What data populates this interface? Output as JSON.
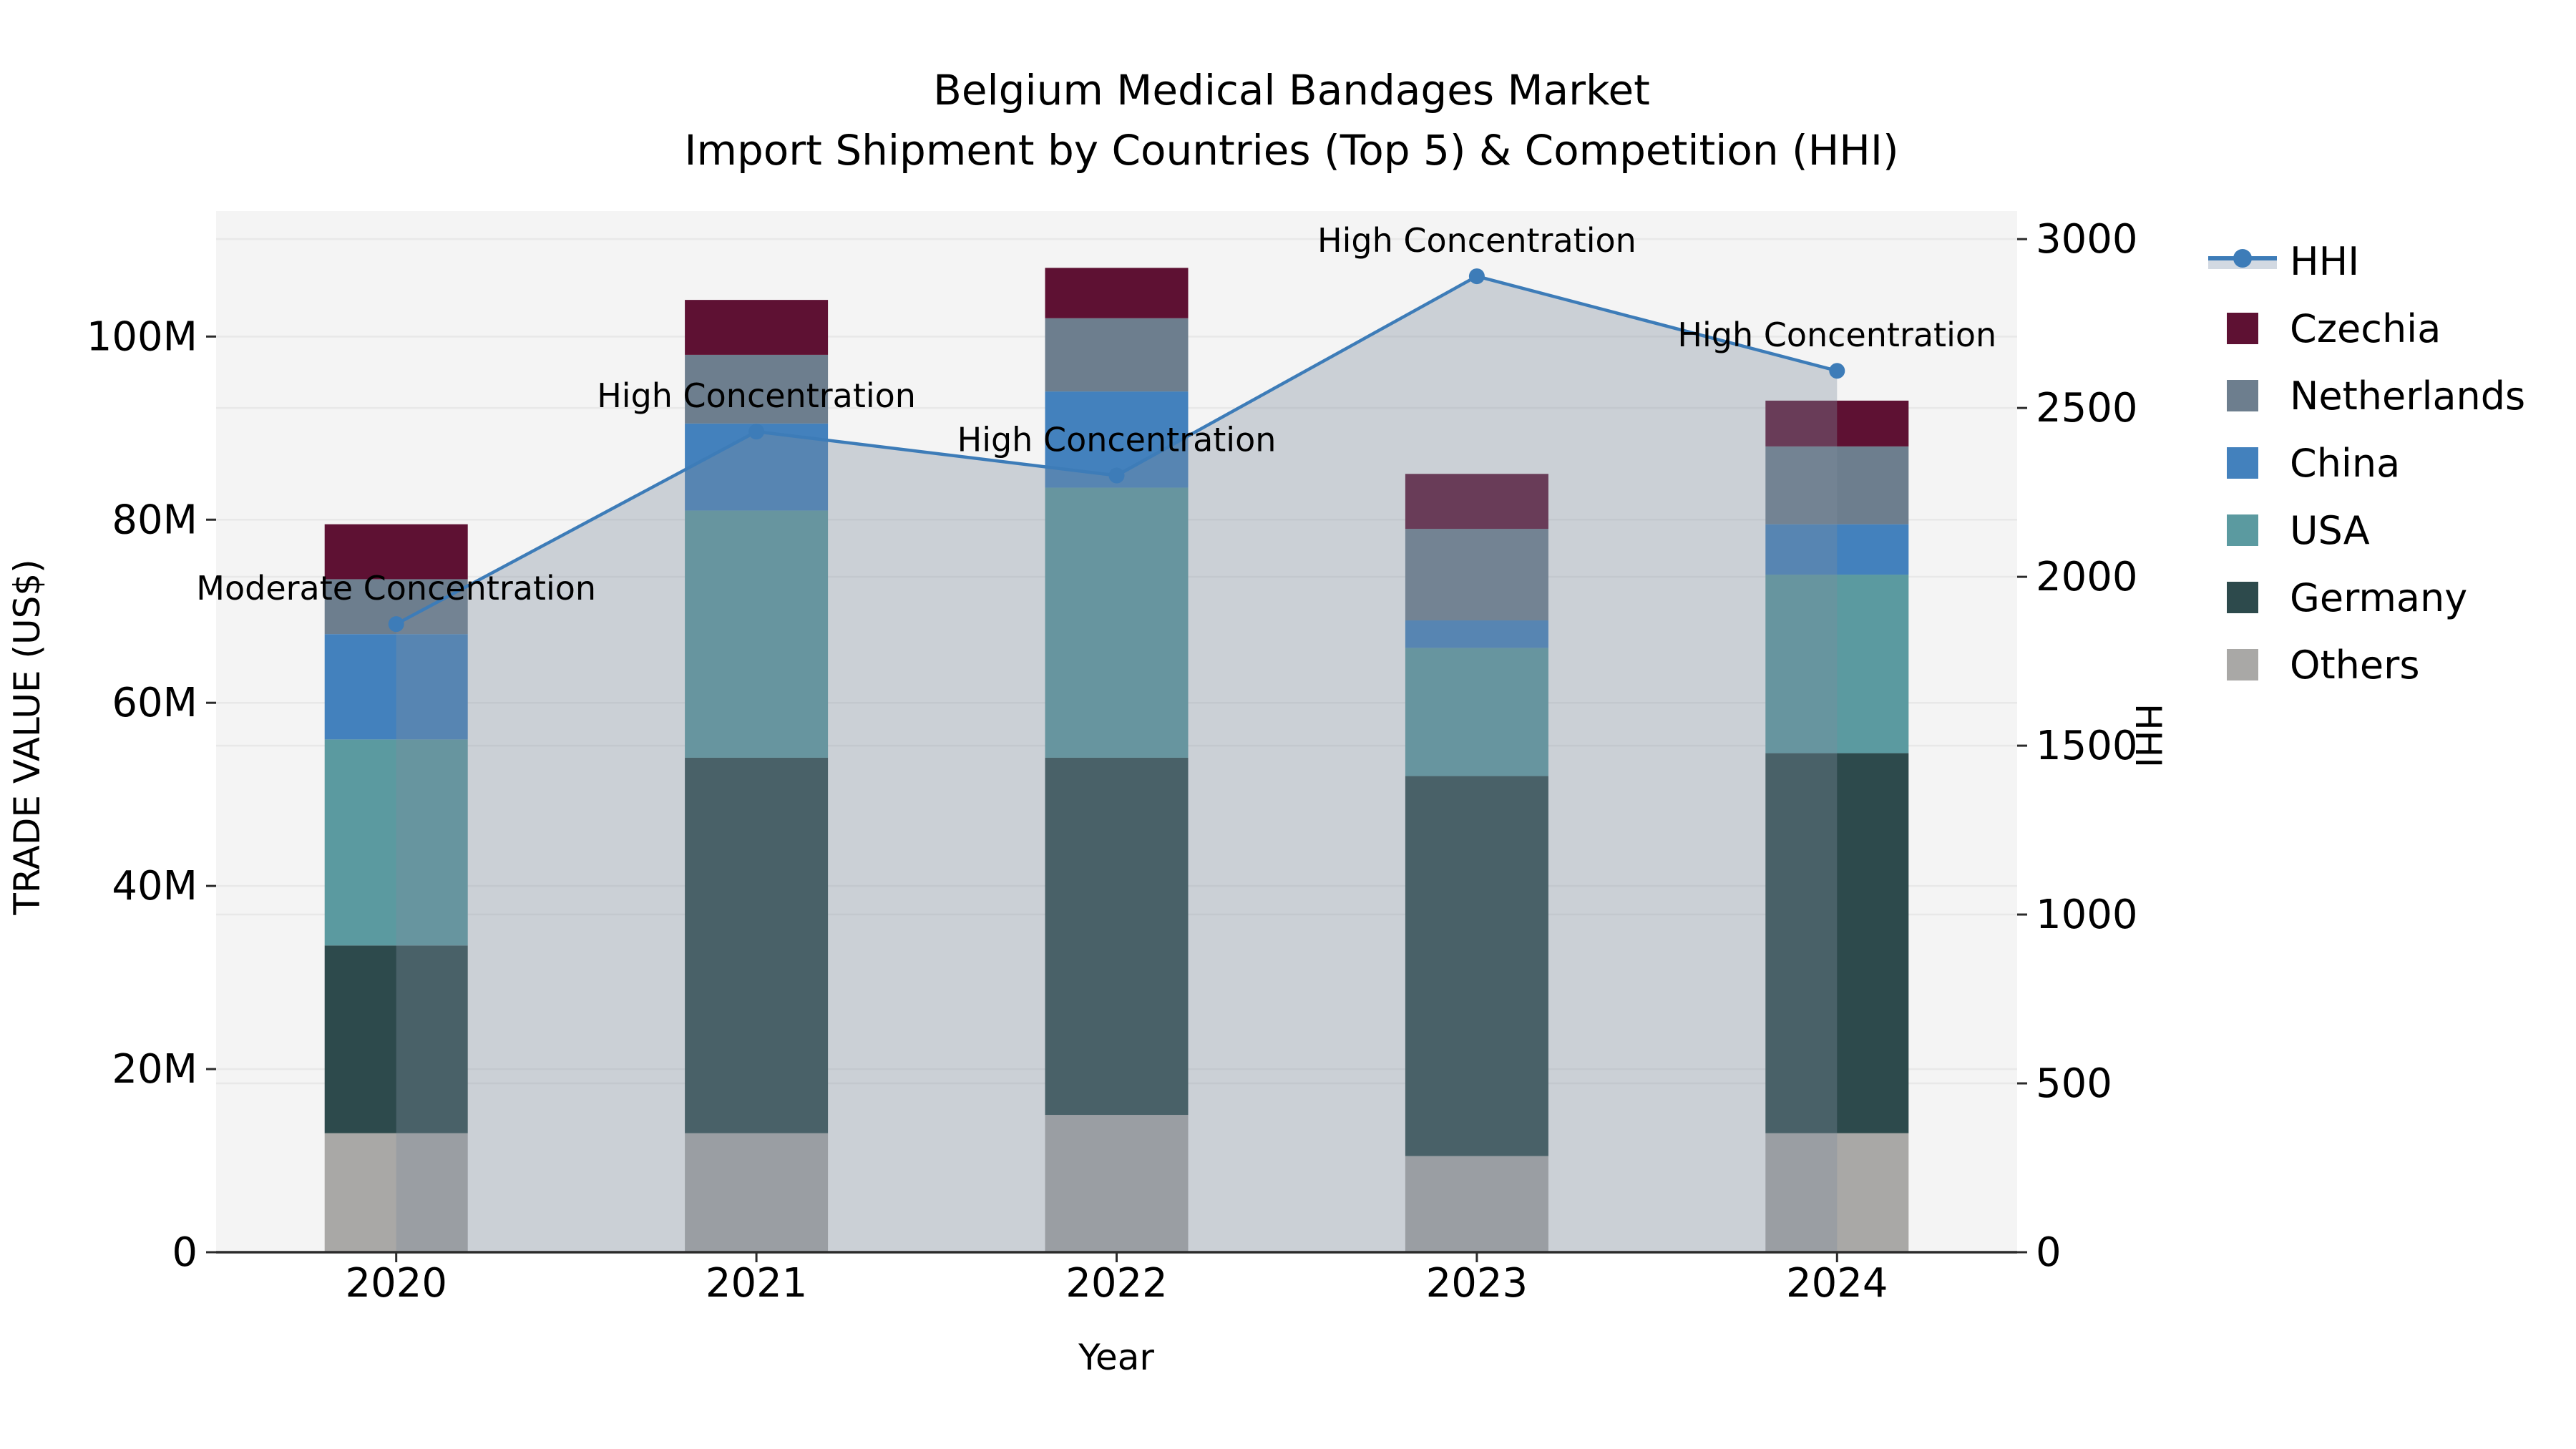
{
  "title": {
    "line1": "Belgium Medical Bandages Market",
    "line2": "Import Shipment by Countries (Top 5) & Competition (HHI)"
  },
  "axes": {
    "x": {
      "label": "Year"
    },
    "y_left": {
      "label": "TRADE VALUE (US$)",
      "max": 113.7,
      "ticks": [
        {
          "v": 0,
          "label": "0"
        },
        {
          "v": 20,
          "label": "20M"
        },
        {
          "v": 40,
          "label": "40M"
        },
        {
          "v": 60,
          "label": "60M"
        },
        {
          "v": 80,
          "label": "80M"
        },
        {
          "v": 100,
          "label": "100M"
        }
      ]
    },
    "y_right": {
      "label": "HHI",
      "max": 3083,
      "ticks": [
        {
          "v": 0,
          "label": "0"
        },
        {
          "v": 500,
          "label": "500"
        },
        {
          "v": 1000,
          "label": "1000"
        },
        {
          "v": 1500,
          "label": "1500"
        },
        {
          "v": 2000,
          "label": "2000"
        },
        {
          "v": 2500,
          "label": "2500"
        },
        {
          "v": 3000,
          "label": "3000"
        }
      ]
    }
  },
  "colors": {
    "plot_bg": "#f4f4f4",
    "gridline": "#e8e8e8",
    "spine": "#2b2b2b",
    "hhi_line": "#3d7cb8",
    "hhi_fill": "rgba(125,140,158,0.35)"
  },
  "legend": {
    "items": [
      {
        "name": "HHI",
        "type": "line"
      },
      {
        "name": "Czechia",
        "type": "square",
        "color": "#5e1133"
      },
      {
        "name": "Netherlands",
        "type": "square",
        "color": "#6d7e8e"
      },
      {
        "name": "China",
        "type": "square",
        "color": "#4381bd"
      },
      {
        "name": "USA",
        "type": "square",
        "color": "#5b9aa0"
      },
      {
        "name": "Germany",
        "type": "square",
        "color": "#2d4a4c"
      },
      {
        "name": "Others",
        "type": "square",
        "color": "#a9a8a6"
      }
    ]
  },
  "chart_data": {
    "type": "bar",
    "subtype": "stacked-bars-with-line-overlay",
    "title": "Belgium Medical Bandages Market — Import Shipment by Countries (Top 5) & Competition (HHI)",
    "xlabel": "Year",
    "ylabel_left": "TRADE VALUE (US$)",
    "ylabel_right": "HHI",
    "categories": [
      "2020",
      "2021",
      "2022",
      "2023",
      "2024"
    ],
    "bar_values_unit": "millions US$",
    "series": [
      {
        "name": "Others",
        "color": "#a9a8a6",
        "values": [
          13.0,
          13.0,
          15.0,
          10.5,
          13.0
        ]
      },
      {
        "name": "Germany",
        "color": "#2d4a4c",
        "values": [
          20.5,
          41.0,
          39.0,
          41.5,
          41.5
        ]
      },
      {
        "name": "USA",
        "color": "#5b9aa0",
        "values": [
          22.5,
          27.0,
          29.5,
          14.0,
          19.5
        ]
      },
      {
        "name": "China",
        "color": "#4381bd",
        "values": [
          11.5,
          9.5,
          10.5,
          3.0,
          5.5
        ]
      },
      {
        "name": "Netherlands",
        "color": "#6d7e8e",
        "values": [
          6.0,
          7.5,
          8.0,
          10.0,
          8.5
        ]
      },
      {
        "name": "Czechia",
        "color": "#5e1133",
        "values": [
          6.0,
          6.0,
          5.5,
          6.0,
          5.0
        ]
      }
    ],
    "line_series": {
      "name": "HHI",
      "axis": "right",
      "values": [
        1860,
        2430,
        2300,
        2890,
        2610
      ],
      "point_labels": [
        "Moderate Concentration",
        "High Concentration",
        "High Concentration",
        "High Concentration",
        "High Concentration"
      ]
    },
    "ylim_left": [
      0,
      113.7
    ],
    "ylim_right": [
      0,
      3083
    ],
    "grid": true,
    "legend_position": "right"
  }
}
